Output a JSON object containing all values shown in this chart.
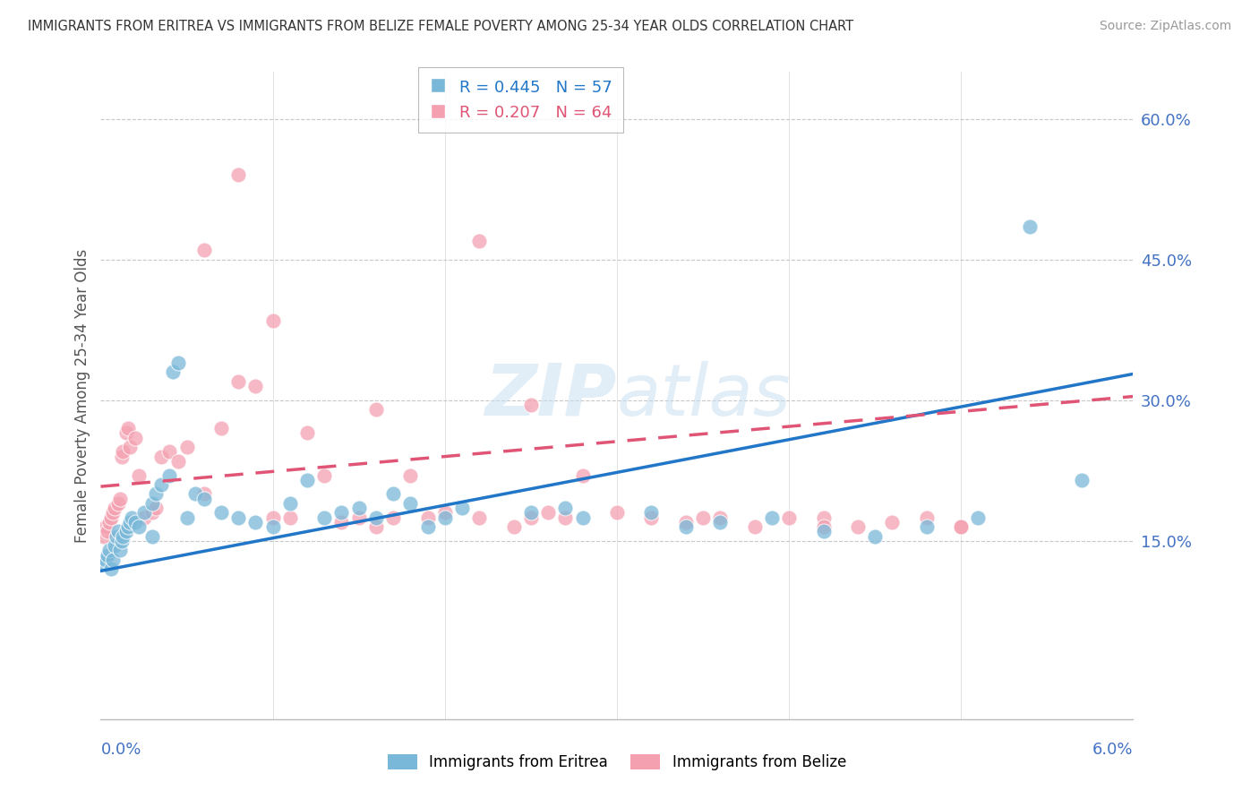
{
  "title": "IMMIGRANTS FROM ERITREA VS IMMIGRANTS FROM BELIZE FEMALE POVERTY AMONG 25-34 YEAR OLDS CORRELATION CHART",
  "source": "Source: ZipAtlas.com",
  "ylabel": "Female Poverty Among 25-34 Year Olds",
  "ytick_labels": [
    "15.0%",
    "30.0%",
    "45.0%",
    "60.0%"
  ],
  "ytick_values": [
    0.15,
    0.3,
    0.45,
    0.6
  ],
  "xmin": 0.0,
  "xmax": 0.06,
  "ymin": -0.04,
  "ymax": 0.65,
  "eritrea_R": 0.445,
  "eritrea_N": 57,
  "belize_R": 0.207,
  "belize_N": 64,
  "eritrea_color": "#7ab8d9",
  "eritrea_line_color": "#2176c7",
  "belize_color": "#f4a0b0",
  "belize_line_color": "#e05575",
  "watermark": "ZIPatlas",
  "background_color": "#ffffff",
  "title_color": "#333333",
  "axis_color": "#4472c4",
  "grid_color": "#c8c8c8",
  "eritrea_x": [
    0.0002,
    0.0003,
    0.0004,
    0.0005,
    0.0006,
    0.0007,
    0.0008,
    0.0009,
    0.001,
    0.0011,
    0.0012,
    0.0013,
    0.0015,
    0.0016,
    0.0017,
    0.0018,
    0.002,
    0.0022,
    0.0025,
    0.003,
    0.003,
    0.0032,
    0.0035,
    0.004,
    0.0042,
    0.0045,
    0.005,
    0.0055,
    0.006,
    0.007,
    0.008,
    0.009,
    0.01,
    0.011,
    0.012,
    0.013,
    0.014,
    0.015,
    0.016,
    0.017,
    0.018,
    0.019,
    0.02,
    0.021,
    0.025,
    0.027,
    0.028,
    0.032,
    0.034,
    0.036,
    0.039,
    0.042,
    0.045,
    0.048,
    0.051,
    0.054,
    0.057
  ],
  "eritrea_y": [
    0.125,
    0.13,
    0.135,
    0.14,
    0.12,
    0.13,
    0.145,
    0.155,
    0.16,
    0.14,
    0.15,
    0.155,
    0.16,
    0.165,
    0.17,
    0.175,
    0.17,
    0.165,
    0.18,
    0.155,
    0.19,
    0.2,
    0.21,
    0.22,
    0.33,
    0.34,
    0.175,
    0.2,
    0.195,
    0.18,
    0.175,
    0.17,
    0.165,
    0.19,
    0.215,
    0.175,
    0.18,
    0.185,
    0.175,
    0.2,
    0.19,
    0.165,
    0.175,
    0.185,
    0.18,
    0.185,
    0.175,
    0.18,
    0.165,
    0.17,
    0.175,
    0.16,
    0.155,
    0.165,
    0.175,
    0.485,
    0.215
  ],
  "belize_x": [
    0.0002,
    0.0003,
    0.0004,
    0.0005,
    0.0006,
    0.0007,
    0.0008,
    0.001,
    0.0011,
    0.0012,
    0.0013,
    0.0015,
    0.0016,
    0.0017,
    0.002,
    0.0022,
    0.0025,
    0.003,
    0.0032,
    0.0035,
    0.004,
    0.0045,
    0.005,
    0.006,
    0.007,
    0.008,
    0.009,
    0.01,
    0.011,
    0.012,
    0.013,
    0.014,
    0.015,
    0.016,
    0.017,
    0.018,
    0.019,
    0.02,
    0.022,
    0.024,
    0.025,
    0.026,
    0.027,
    0.028,
    0.03,
    0.032,
    0.034,
    0.036,
    0.038,
    0.04,
    0.042,
    0.044,
    0.046,
    0.048,
    0.05,
    0.022,
    0.01,
    0.008,
    0.006,
    0.016,
    0.025,
    0.035,
    0.042,
    0.05
  ],
  "belize_y": [
    0.155,
    0.165,
    0.16,
    0.17,
    0.175,
    0.18,
    0.185,
    0.19,
    0.195,
    0.24,
    0.245,
    0.265,
    0.27,
    0.25,
    0.26,
    0.22,
    0.175,
    0.18,
    0.185,
    0.24,
    0.245,
    0.235,
    0.25,
    0.2,
    0.27,
    0.32,
    0.315,
    0.175,
    0.175,
    0.265,
    0.22,
    0.17,
    0.175,
    0.165,
    0.175,
    0.22,
    0.175,
    0.18,
    0.175,
    0.165,
    0.175,
    0.18,
    0.175,
    0.22,
    0.18,
    0.175,
    0.17,
    0.175,
    0.165,
    0.175,
    0.175,
    0.165,
    0.17,
    0.175,
    0.165,
    0.47,
    0.385,
    0.54,
    0.46,
    0.29,
    0.295,
    0.175,
    0.165,
    0.165
  ]
}
